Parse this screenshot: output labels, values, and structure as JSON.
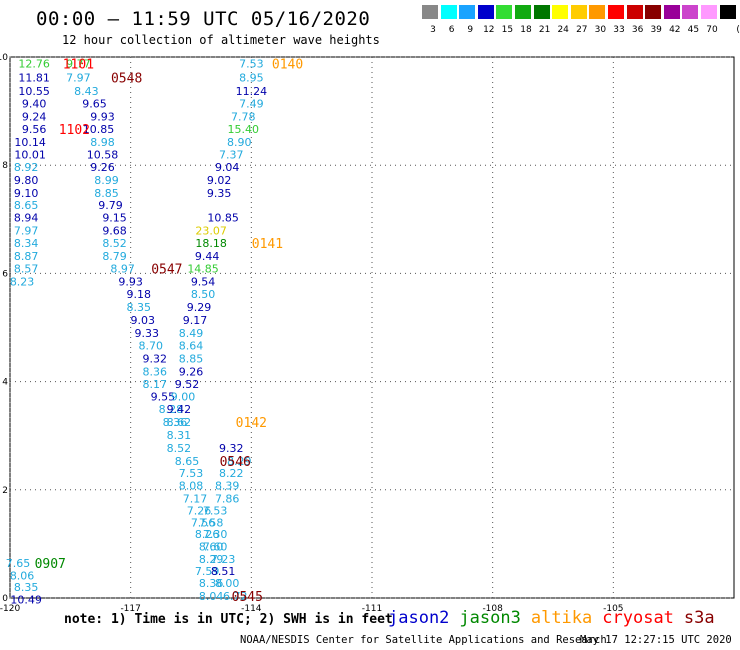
{
  "header": {
    "title": "00:00 – 11:59 UTC 05/16/2020",
    "subtitle": "12 hour collection of altimeter wave heights"
  },
  "legend": {
    "unit": "(ft)",
    "bins": [
      {
        "label": "3",
        "color": "#888888"
      },
      {
        "label": "6",
        "color": "#00ffff"
      },
      {
        "label": "9",
        "color": "#1aa3ff"
      },
      {
        "label": "12",
        "color": "#0000cc"
      },
      {
        "label": "15",
        "color": "#33dd33"
      },
      {
        "label": "18",
        "color": "#11aa11"
      },
      {
        "label": "21",
        "color": "#007700"
      },
      {
        "label": "24",
        "color": "#ffff00"
      },
      {
        "label": "27",
        "color": "#ffcc00"
      },
      {
        "label": "30",
        "color": "#ff9900"
      },
      {
        "label": "33",
        "color": "#ff0000"
      },
      {
        "label": "36",
        "color": "#cc0000"
      },
      {
        "label": "39",
        "color": "#880000"
      },
      {
        "label": "42",
        "color": "#990099"
      },
      {
        "label": "45",
        "color": "#cc44cc"
      },
      {
        "label": "70",
        "color": "#ff99ff"
      },
      {
        "label": "",
        "color": "#000000"
      }
    ]
  },
  "colors": {
    "jason2": "#0000cc",
    "jason3": "#008800",
    "altika": "#ff9900",
    "cryosat": "#ff0000",
    "s3a": "#880000",
    "light": "#22aadd",
    "dark": "#0000aa",
    "green": "#33cc33",
    "yellow": "#ddcc00"
  },
  "chart_data": {
    "type": "scatter",
    "xlim": [
      -120,
      -102
    ],
    "ylim": [
      0,
      10
    ],
    "x_ticks": [
      "-120",
      "-117",
      "-114",
      "-111",
      "-108",
      "-105"
    ],
    "x_tick_values": [
      -120,
      -117,
      -114,
      -111,
      -108,
      -105
    ],
    "y_ticks": [
      "0",
      "2",
      "4",
      "6",
      "8",
      "10"
    ],
    "y_tick_values": [
      0,
      2,
      4,
      6,
      8,
      10
    ],
    "grid": "dotted",
    "points": [
      {
        "x": -119.4,
        "y": 9.88,
        "v": "12.76",
        "c": "green"
      },
      {
        "x": -119.4,
        "y": 9.62,
        "v": "11.81",
        "c": "dark"
      },
      {
        "x": -119.4,
        "y": 9.37,
        "v": "10.55",
        "c": "dark"
      },
      {
        "x": -119.4,
        "y": 9.14,
        "v": "9.40",
        "c": "dark"
      },
      {
        "x": -119.4,
        "y": 8.9,
        "v": "9.24",
        "c": "dark"
      },
      {
        "x": -119.4,
        "y": 8.67,
        "v": "9.56",
        "c": "dark"
      },
      {
        "x": -119.5,
        "y": 8.43,
        "v": "10.14",
        "c": "dark"
      },
      {
        "x": -119.5,
        "y": 8.2,
        "v": "10.01",
        "c": "dark"
      },
      {
        "x": -119.6,
        "y": 7.97,
        "v": "8.92",
        "c": "light"
      },
      {
        "x": -119.6,
        "y": 7.73,
        "v": "9.80",
        "c": "dark"
      },
      {
        "x": -119.6,
        "y": 7.49,
        "v": "9.10",
        "c": "dark"
      },
      {
        "x": -119.6,
        "y": 7.26,
        "v": "8.65",
        "c": "light"
      },
      {
        "x": -119.6,
        "y": 7.03,
        "v": "8.94",
        "c": "dark"
      },
      {
        "x": -119.6,
        "y": 6.79,
        "v": "7.97",
        "c": "light"
      },
      {
        "x": -119.6,
        "y": 6.56,
        "v": "8.34",
        "c": "light"
      },
      {
        "x": -119.6,
        "y": 6.32,
        "v": "8.87",
        "c": "light"
      },
      {
        "x": -119.6,
        "y": 6.09,
        "v": "8.57",
        "c": "light"
      },
      {
        "x": -119.7,
        "y": 5.85,
        "v": "8.23",
        "c": "light"
      },
      {
        "x": -118.3,
        "y": 9.88,
        "v": "9.77",
        "c": "green"
      },
      {
        "x": -118.3,
        "y": 9.62,
        "v": "7.97",
        "c": "light"
      },
      {
        "x": -118.1,
        "y": 9.37,
        "v": "8.43",
        "c": "light"
      },
      {
        "x": -117.9,
        "y": 9.14,
        "v": "9.65",
        "c": "dark"
      },
      {
        "x": -117.7,
        "y": 8.9,
        "v": "9.93",
        "c": "dark"
      },
      {
        "x": -117.8,
        "y": 8.67,
        "v": "10.85",
        "c": "dark"
      },
      {
        "x": -117.7,
        "y": 8.43,
        "v": "8.98",
        "c": "light"
      },
      {
        "x": -117.7,
        "y": 8.2,
        "v": "10.58",
        "c": "dark"
      },
      {
        "x": -117.7,
        "y": 7.97,
        "v": "9.26",
        "c": "dark"
      },
      {
        "x": -117.6,
        "y": 7.73,
        "v": "8.99",
        "c": "light"
      },
      {
        "x": -117.6,
        "y": 7.49,
        "v": "8.85",
        "c": "light"
      },
      {
        "x": -117.5,
        "y": 7.26,
        "v": "9.79",
        "c": "dark"
      },
      {
        "x": -117.4,
        "y": 7.03,
        "v": "9.15",
        "c": "dark"
      },
      {
        "x": -117.4,
        "y": 6.79,
        "v": "9.68",
        "c": "dark"
      },
      {
        "x": -117.4,
        "y": 6.56,
        "v": "8.52",
        "c": "light"
      },
      {
        "x": -117.4,
        "y": 6.32,
        "v": "8.79",
        "c": "light"
      },
      {
        "x": -117.2,
        "y": 6.09,
        "v": "8.97",
        "c": "light"
      },
      {
        "x": -117.0,
        "y": 5.85,
        "v": "9.93",
        "c": "dark"
      },
      {
        "x": -116.8,
        "y": 5.62,
        "v": "9.18",
        "c": "dark"
      },
      {
        "x": -116.8,
        "y": 5.38,
        "v": "8.35",
        "c": "light"
      },
      {
        "x": -116.7,
        "y": 5.14,
        "v": "9.03",
        "c": "dark"
      },
      {
        "x": -116.6,
        "y": 4.9,
        "v": "9.33",
        "c": "dark"
      },
      {
        "x": -116.5,
        "y": 4.67,
        "v": "8.70",
        "c": "light"
      },
      {
        "x": -116.4,
        "y": 4.43,
        "v": "9.32",
        "c": "dark"
      },
      {
        "x": -116.4,
        "y": 4.19,
        "v": "8.36",
        "c": "light"
      },
      {
        "x": -116.4,
        "y": 3.96,
        "v": "8.17",
        "c": "light"
      },
      {
        "x": -116.2,
        "y": 3.72,
        "v": "9.55",
        "c": "dark"
      },
      {
        "x": -116.0,
        "y": 3.49,
        "v": "8.28",
        "c": "light"
      },
      {
        "x": -115.9,
        "y": 3.25,
        "v": "8.36",
        "c": "light"
      },
      {
        "x": -115.8,
        "y": 3.01,
        "v": "8.31",
        "c": "light"
      },
      {
        "x": -115.8,
        "y": 2.77,
        "v": "8.52",
        "c": "light"
      },
      {
        "x": -115.6,
        "y": 2.53,
        "v": "8.65",
        "c": "light"
      },
      {
        "x": -115.5,
        "y": 2.31,
        "v": "7.53",
        "c": "light"
      },
      {
        "x": -115.5,
        "y": 2.08,
        "v": "8.08",
        "c": "light"
      },
      {
        "x": -115.4,
        "y": 1.84,
        "v": "7.17",
        "c": "light"
      },
      {
        "x": -115.3,
        "y": 1.62,
        "v": "7.26",
        "c": "light"
      },
      {
        "x": -115.2,
        "y": 1.4,
        "v": "7.56",
        "c": "light"
      },
      {
        "x": -115.1,
        "y": 1.18,
        "v": "8.26",
        "c": "light"
      },
      {
        "x": -115.0,
        "y": 0.95,
        "v": "8.60",
        "c": "light"
      },
      {
        "x": -115.0,
        "y": 0.72,
        "v": "8.29",
        "c": "light"
      },
      {
        "x": -115.1,
        "y": 0.5,
        "v": "7.59",
        "c": "light"
      },
      {
        "x": -115.0,
        "y": 0.28,
        "v": "8.36",
        "c": "light"
      },
      {
        "x": -115.0,
        "y": 0.04,
        "v": "8.04",
        "c": "light"
      },
      {
        "x": -114.5,
        "y": 2.77,
        "v": "9.32",
        "c": "dark"
      },
      {
        "x": -114.3,
        "y": 2.53,
        "v": "8.29",
        "c": "light"
      },
      {
        "x": -114.5,
        "y": 2.31,
        "v": "8.22",
        "c": "light"
      },
      {
        "x": -114.6,
        "y": 2.08,
        "v": "8.39",
        "c": "light"
      },
      {
        "x": -114.6,
        "y": 1.84,
        "v": "7.86",
        "c": "light"
      },
      {
        "x": -114.9,
        "y": 1.62,
        "v": "7.53",
        "c": "light"
      },
      {
        "x": -115.0,
        "y": 1.4,
        "v": "7.58",
        "c": "light"
      },
      {
        "x": -114.9,
        "y": 1.18,
        "v": "7.30",
        "c": "light"
      },
      {
        "x": -114.9,
        "y": 0.95,
        "v": "7.60",
        "c": "light"
      },
      {
        "x": -114.7,
        "y": 0.72,
        "v": "7.23",
        "c": "light"
      },
      {
        "x": -114.7,
        "y": 0.5,
        "v": "8.51",
        "c": "dark"
      },
      {
        "x": -114.6,
        "y": 0.28,
        "v": "8.00",
        "c": "light"
      },
      {
        "x": -114.4,
        "y": 0.04,
        "v": "6.72",
        "c": "light"
      },
      {
        "x": -114.0,
        "y": 9.88,
        "v": "7.53",
        "c": "light"
      },
      {
        "x": -114.0,
        "y": 9.62,
        "v": "8.95",
        "c": "light"
      },
      {
        "x": -114.0,
        "y": 9.37,
        "v": "11.24",
        "c": "dark"
      },
      {
        "x": -114.0,
        "y": 9.14,
        "v": "7.49",
        "c": "light"
      },
      {
        "x": -114.2,
        "y": 8.9,
        "v": "7.78",
        "c": "light"
      },
      {
        "x": -114.2,
        "y": 8.67,
        "v": "15.40",
        "c": "green"
      },
      {
        "x": -114.3,
        "y": 8.43,
        "v": "8.90",
        "c": "light"
      },
      {
        "x": -114.5,
        "y": 8.2,
        "v": "7.37",
        "c": "light"
      },
      {
        "x": -114.6,
        "y": 7.97,
        "v": "9.04",
        "c": "dark"
      },
      {
        "x": -114.8,
        "y": 7.73,
        "v": "9.02",
        "c": "dark"
      },
      {
        "x": -114.8,
        "y": 7.49,
        "v": "9.35",
        "c": "dark"
      },
      {
        "x": -114.7,
        "y": 7.03,
        "v": "10.85",
        "c": "dark"
      },
      {
        "x": -115.0,
        "y": 6.79,
        "v": "23.07",
        "c": "yellow"
      },
      {
        "x": -115.0,
        "y": 6.56,
        "v": "18.18",
        "c": "jason3"
      },
      {
        "x": -115.1,
        "y": 6.32,
        "v": "9.44",
        "c": "dark"
      },
      {
        "x": -115.2,
        "y": 6.09,
        "v": "14.85",
        "c": "green"
      },
      {
        "x": -115.2,
        "y": 5.85,
        "v": "9.54",
        "c": "dark"
      },
      {
        "x": -115.2,
        "y": 5.62,
        "v": "8.50",
        "c": "light"
      },
      {
        "x": -115.3,
        "y": 5.38,
        "v": "9.29",
        "c": "dark"
      },
      {
        "x": -115.4,
        "y": 5.14,
        "v": "9.17",
        "c": "dark"
      },
      {
        "x": -115.5,
        "y": 4.9,
        "v": "8.49",
        "c": "light"
      },
      {
        "x": -115.5,
        "y": 4.67,
        "v": "8.64",
        "c": "light"
      },
      {
        "x": -115.5,
        "y": 4.43,
        "v": "8.85",
        "c": "light"
      },
      {
        "x": -115.5,
        "y": 4.19,
        "v": "9.26",
        "c": "dark"
      },
      {
        "x": -115.6,
        "y": 3.96,
        "v": "9.52",
        "c": "dark"
      },
      {
        "x": -115.7,
        "y": 3.72,
        "v": "9.00",
        "c": "light"
      },
      {
        "x": -115.8,
        "y": 3.49,
        "v": "9.42",
        "c": "dark"
      },
      {
        "x": -115.8,
        "y": 3.25,
        "v": "8.62",
        "c": "light"
      },
      {
        "x": -119.8,
        "y": 0.65,
        "v": "7.65",
        "c": "light"
      },
      {
        "x": -119.7,
        "y": 0.42,
        "v": "8.06",
        "c": "light"
      },
      {
        "x": -119.6,
        "y": 0.2,
        "v": "8.35",
        "c": "light"
      },
      {
        "x": -119.6,
        "y": -0.03,
        "v": "10.49",
        "c": "dark"
      }
    ],
    "passes": [
      {
        "x": -118.3,
        "y": 9.88,
        "v": "1101",
        "c": "cryosat"
      },
      {
        "x": -117.1,
        "y": 9.62,
        "v": "0548",
        "c": "s3a"
      },
      {
        "x": -118.4,
        "y": 8.67,
        "v": "1102",
        "c": "cryosat"
      },
      {
        "x": -113.1,
        "y": 9.88,
        "v": "0140",
        "c": "altika"
      },
      {
        "x": -113.6,
        "y": 6.56,
        "v": "0141",
        "c": "altika"
      },
      {
        "x": -116.1,
        "y": 6.09,
        "v": "0547",
        "c": "s3a"
      },
      {
        "x": -114.0,
        "y": 3.25,
        "v": "0142",
        "c": "altika"
      },
      {
        "x": -114.4,
        "y": 2.53,
        "v": "0546",
        "c": "s3a"
      },
      {
        "x": -119.0,
        "y": 0.65,
        "v": "0907",
        "c": "jason3"
      },
      {
        "x": -114.1,
        "y": 0.04,
        "v": "0545",
        "c": "s3a"
      }
    ]
  },
  "footer": {
    "note": "note: 1) Time is in UTC; 2) SWH is in feet",
    "satellites": {
      "jason2": "jason2",
      "jason3": "jason3",
      "altika": "altika",
      "cryosat": "cryosat",
      "s3a": "s3a"
    },
    "credit": "NOAA/NESDIS Center for Satellite Applications and Research",
    "stamp": "May 17 12:27:15 UTC 2020"
  }
}
